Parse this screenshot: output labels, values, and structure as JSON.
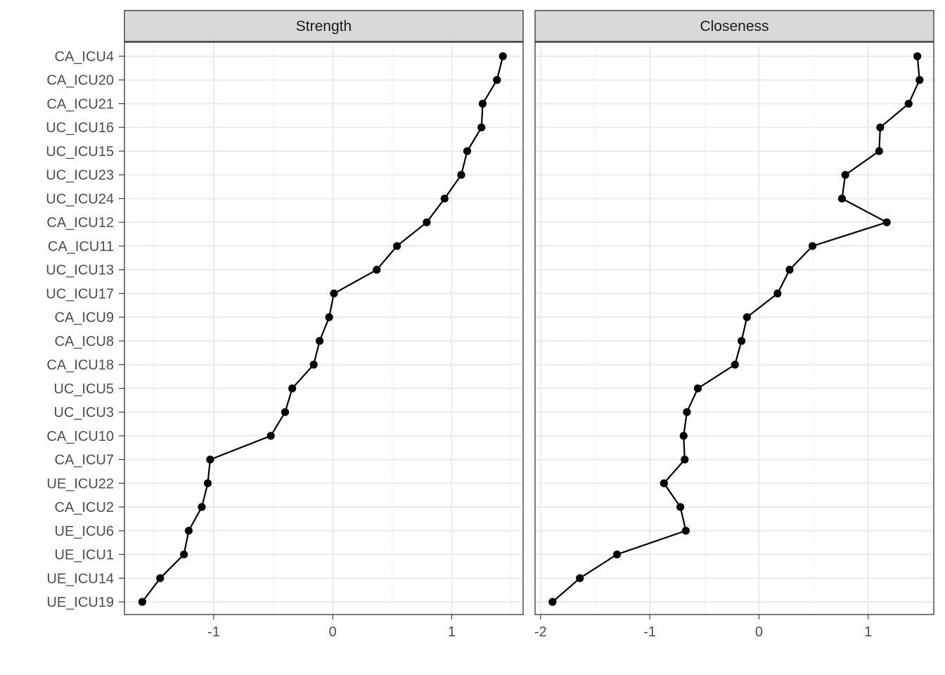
{
  "chart_data": {
    "type": "line",
    "categories": [
      "CA_ICU4",
      "CA_ICU20",
      "CA_ICU21",
      "UC_ICU16",
      "UC_ICU15",
      "UC_ICU23",
      "UC_ICU24",
      "CA_ICU12",
      "CA_ICU11",
      "UC_ICU13",
      "UC_ICU17",
      "CA_ICU9",
      "CA_ICU8",
      "CA_ICU18",
      "UC_ICU5",
      "UC_ICU3",
      "CA_ICU10",
      "CA_ICU7",
      "UE_ICU22",
      "CA_ICU2",
      "UE_ICU6",
      "UE_ICU1",
      "UE_ICU14",
      "UE_ICU19"
    ],
    "panels": [
      {
        "name": "Strength",
        "xlim": [
          -1.75,
          1.6
        ],
        "x_ticks": [
          -1,
          0,
          1
        ],
        "x_tick_labels": [
          "-1",
          "0",
          "1"
        ],
        "values": [
          1.43,
          1.38,
          1.26,
          1.25,
          1.13,
          1.08,
          0.94,
          0.79,
          0.54,
          0.37,
          0.01,
          -0.03,
          -0.11,
          -0.16,
          -0.34,
          -0.4,
          -0.52,
          -1.03,
          -1.05,
          -1.1,
          -1.21,
          -1.25,
          -1.45,
          -1.6
        ]
      },
      {
        "name": "Closeness",
        "xlim": [
          -2.05,
          1.6
        ],
        "x_ticks": [
          -2,
          -1,
          0,
          1
        ],
        "x_tick_labels": [
          "-2",
          "-1",
          "0",
          "1"
        ],
        "values": [
          1.45,
          1.47,
          1.37,
          1.11,
          1.1,
          0.79,
          0.76,
          1.17,
          0.49,
          0.28,
          0.17,
          -0.11,
          -0.16,
          -0.22,
          -0.56,
          -0.66,
          -0.69,
          -0.68,
          -0.87,
          -0.72,
          -0.67,
          -1.3,
          -1.64,
          -1.89
        ]
      }
    ],
    "title": "",
    "xlabel": "",
    "ylabel": "",
    "grid": true,
    "legend": "none",
    "colors": {
      "line": "#000000",
      "point": "#000000",
      "strip_fill": "#d9d9d9",
      "panel_border": "#333333",
      "grid_major": "#ebebeb",
      "grid_minor": "#f5f5f5",
      "text": "#4d4d4d"
    }
  }
}
